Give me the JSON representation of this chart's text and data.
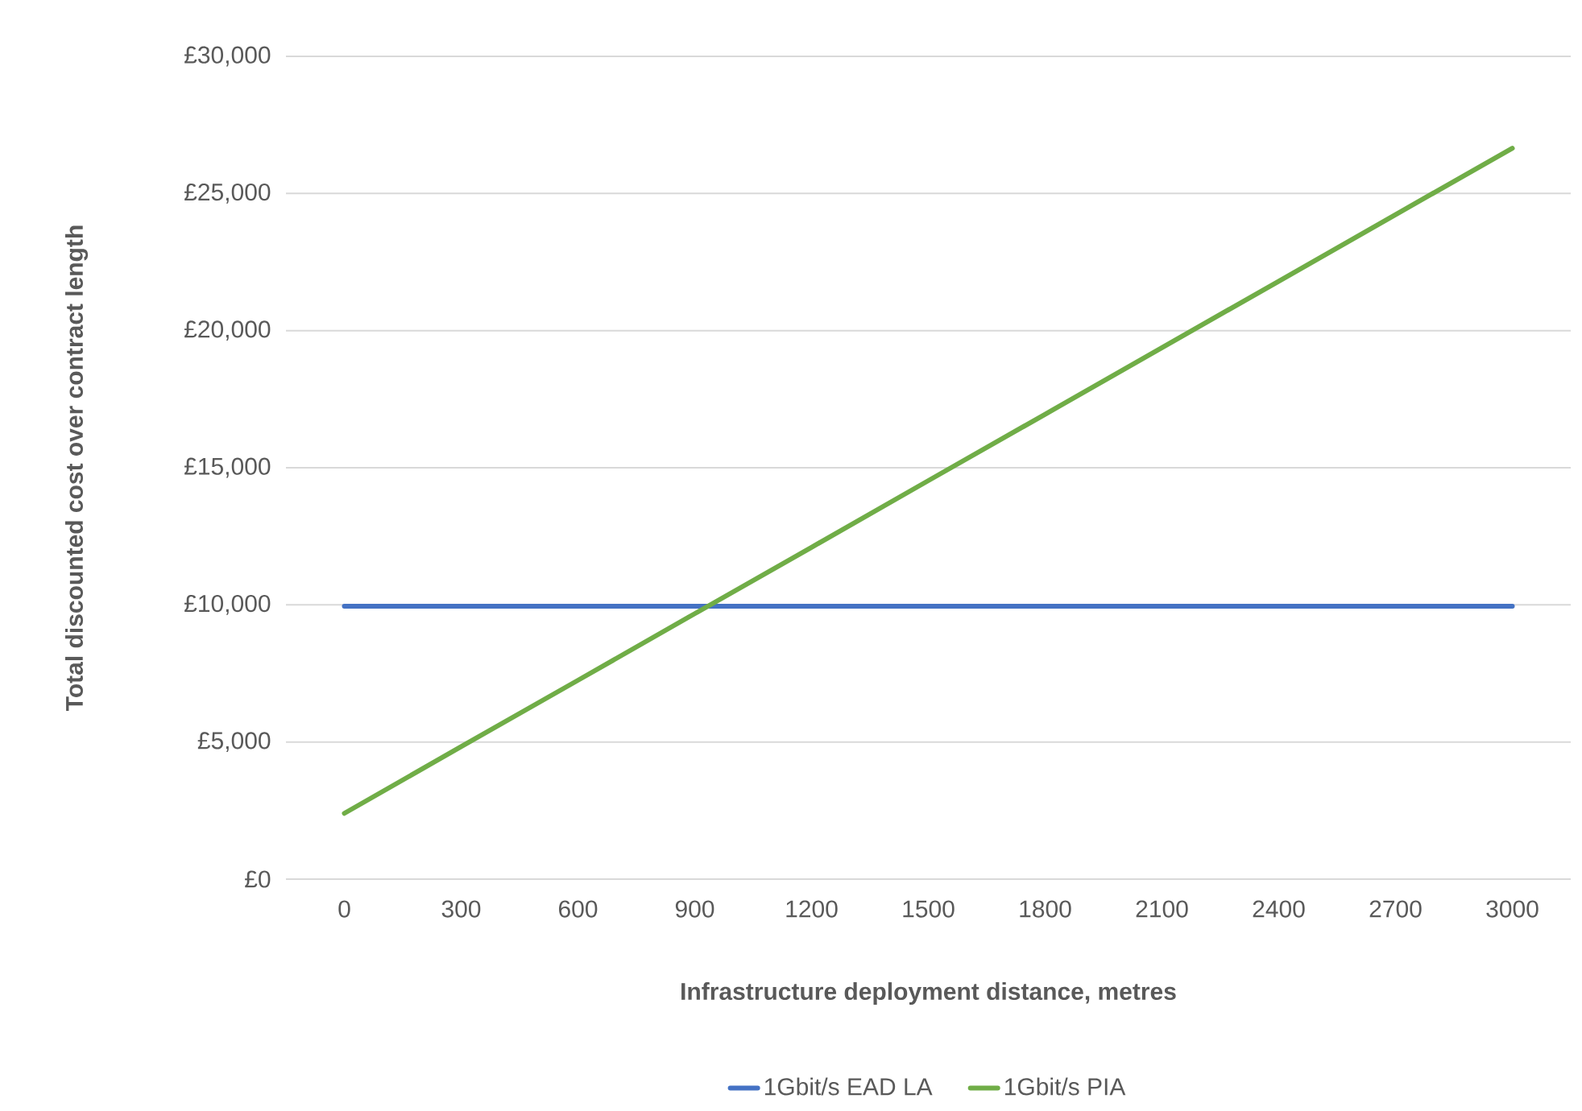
{
  "chart_data": {
    "type": "line",
    "xlabel": "Infrastructure deployment distance, metres",
    "ylabel": "Total discounted cost over contract length",
    "categories": [
      "0",
      "300",
      "600",
      "900",
      "1200",
      "1500",
      "1800",
      "2100",
      "2400",
      "2700",
      "3000"
    ],
    "series": [
      {
        "name": "1Gbit/s EAD LA",
        "color": "#4472c4",
        "values": [
          9950,
          9950,
          9950,
          9950,
          9950,
          9950,
          9950,
          9950,
          9950,
          9950,
          9950
        ]
      },
      {
        "name": "1Gbit/s PIA",
        "color": "#70ad47",
        "values": [
          2400,
          4830,
          7250,
          9680,
          12100,
          14530,
          16950,
          19380,
          21800,
          24230,
          26650
        ]
      }
    ],
    "ylim": [
      0,
      30000
    ],
    "yticks": [
      {
        "value": 0,
        "label": "£0"
      },
      {
        "value": 5000,
        "label": "£5,000"
      },
      {
        "value": 10000,
        "label": "£10,000"
      },
      {
        "value": 15000,
        "label": "£15,000"
      },
      {
        "value": 20000,
        "label": "£20,000"
      },
      {
        "value": 25000,
        "label": "£25,000"
      },
      {
        "value": 30000,
        "label": "£30,000"
      }
    ],
    "grid": "y",
    "legend": "bottom",
    "marker": "none",
    "line_style": "solid"
  }
}
